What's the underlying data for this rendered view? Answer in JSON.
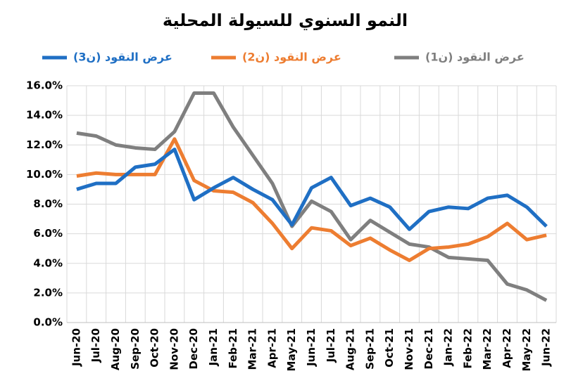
{
  "chart_data": {
    "type": "line",
    "title": "النمو السنوي للسيولة المحلية",
    "categories": [
      "Jun-20",
      "Jul-20",
      "Aug-20",
      "Sep-20",
      "Oct-20",
      "Nov-20",
      "Dec-20",
      "Jan-21",
      "Feb-21",
      "Mar-21",
      "Apr-21",
      "May-21",
      "Jun-21",
      "Jul-21",
      "Aug-21",
      "Sep-21",
      "Oct-21",
      "Nov-21",
      "Dec-21",
      "Jan-22",
      "Feb-22",
      "Mar-22",
      "Apr-22",
      "May-22",
      "Jun-22"
    ],
    "series": [
      {
        "name": "عرض النقود (ن1)",
        "color": "#7f7f7f",
        "values": [
          12.8,
          12.6,
          12.0,
          11.8,
          11.7,
          12.9,
          15.5,
          15.5,
          13.2,
          11.3,
          9.4,
          6.5,
          8.2,
          7.5,
          5.6,
          6.9,
          6.1,
          5.3,
          5.1,
          4.4,
          4.3,
          4.2,
          2.6,
          2.2,
          1.5
        ]
      },
      {
        "name": "عرض النقود (ن2)",
        "color": "#ed7d31",
        "values": [
          9.9,
          10.1,
          10.0,
          10.0,
          10.0,
          12.4,
          9.6,
          8.9,
          8.8,
          8.1,
          6.7,
          5.0,
          6.4,
          6.2,
          5.2,
          5.7,
          4.9,
          4.2,
          5.0,
          5.1,
          5.3,
          5.8,
          6.7,
          5.6,
          5.9
        ]
      },
      {
        "name": "عرض النقود (ن3)",
        "color": "#1f6fc4",
        "values": [
          9.0,
          9.4,
          9.4,
          10.5,
          10.7,
          11.7,
          8.3,
          9.1,
          9.8,
          9.0,
          8.3,
          6.6,
          9.1,
          9.8,
          7.9,
          8.4,
          7.8,
          6.3,
          7.5,
          7.8,
          7.7,
          8.4,
          8.6,
          7.8,
          6.5
        ]
      }
    ],
    "ylim": [
      0,
      16
    ],
    "yticks": [
      {
        "value": 0,
        "label": "0.0%"
      },
      {
        "value": 2,
        "label": "2.0%"
      },
      {
        "value": 4,
        "label": "4.0%"
      },
      {
        "value": 6,
        "label": "6.0%"
      },
      {
        "value": 8,
        "label": "8.0%"
      },
      {
        "value": 10,
        "label": "10.0%"
      },
      {
        "value": 12,
        "label": "12.0%"
      },
      {
        "value": 14,
        "label": "14.0%"
      },
      {
        "value": 16,
        "label": "16.0%"
      }
    ],
    "grid": true
  }
}
